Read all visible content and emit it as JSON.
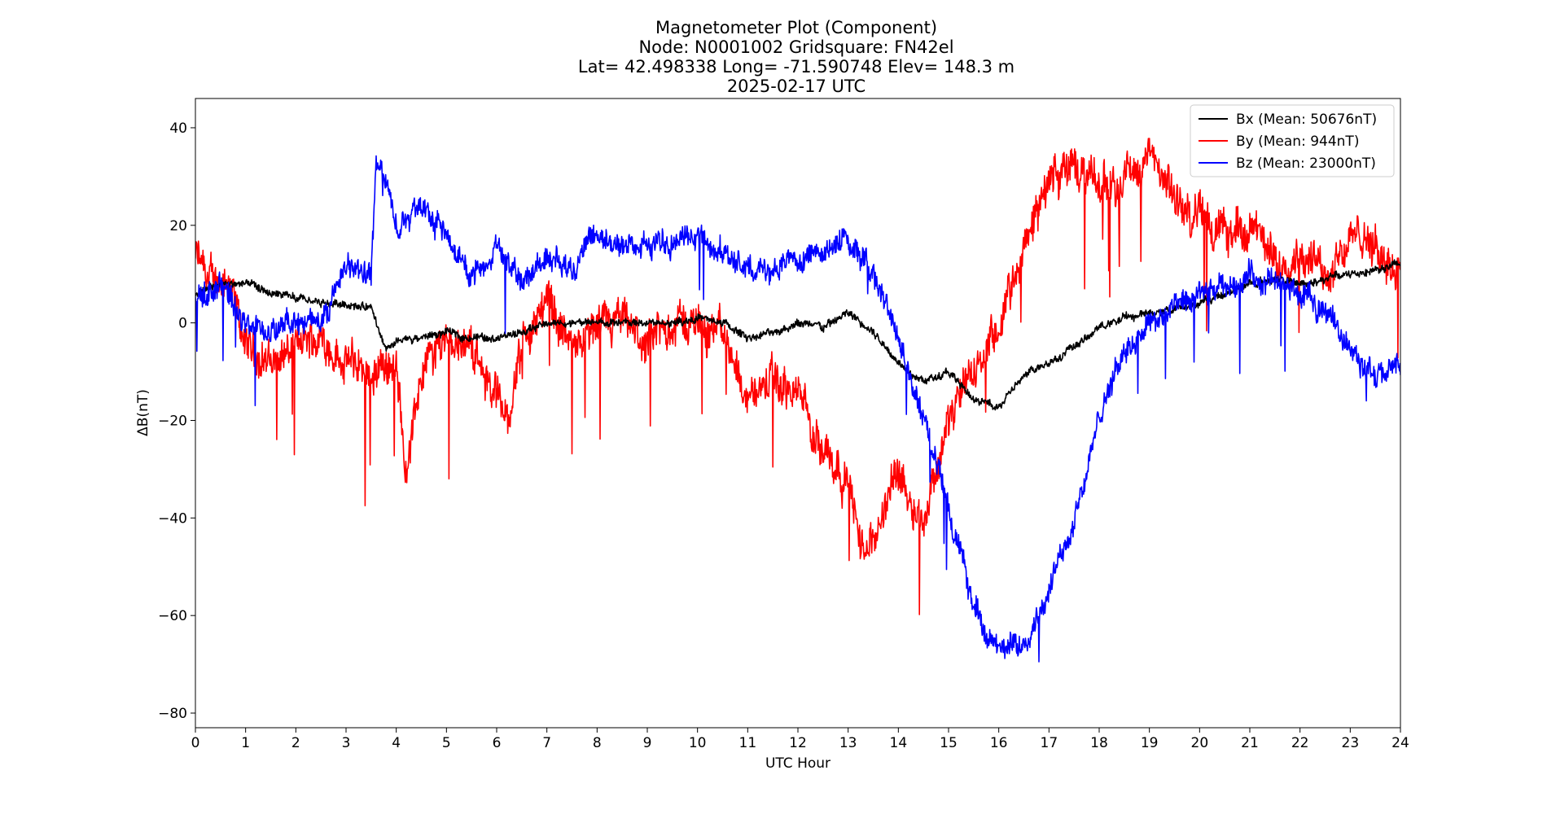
{
  "chart_data": {
    "type": "line",
    "title_lines": [
      "Magnetometer Plot (Component)",
      "Node:  N0001002     Gridsquare:  FN42el",
      "Lat= 42.498338    Long= -71.590748    Elev= 148.3 m",
      "2025-02-17  UTC"
    ],
    "xlabel": "UTC Hour",
    "ylabel": "ΔB(nT)",
    "xlim": [
      0,
      24
    ],
    "ylim": [
      -83,
      46
    ],
    "x_ticks": [
      0,
      1,
      2,
      3,
      4,
      5,
      6,
      7,
      8,
      9,
      10,
      11,
      12,
      13,
      14,
      15,
      16,
      17,
      18,
      19,
      20,
      21,
      22,
      23,
      24
    ],
    "y_ticks": [
      -80,
      -60,
      -40,
      -20,
      0,
      20,
      40
    ],
    "y_tick_labels": [
      "−80",
      "−60",
      "−40",
      "−20",
      "0",
      "20",
      "40"
    ],
    "grid": false,
    "legend_position": "top-right",
    "series": [
      {
        "name": "Bx (Mean: 50676nT)",
        "color": "#000000",
        "noise": 0.9,
        "x": [
          0,
          0.5,
          1,
          1.5,
          2,
          2.5,
          3,
          3.5,
          3.8,
          4,
          4.5,
          5,
          5.5,
          6,
          6.5,
          7,
          7.5,
          8,
          8.5,
          9,
          9.5,
          10,
          10.5,
          11,
          11.5,
          12,
          12.5,
          13,
          13.5,
          14,
          14.5,
          15,
          15.5,
          16,
          16.5,
          17,
          17.5,
          18,
          18.5,
          19,
          19.5,
          20,
          20.5,
          21,
          21.5,
          22,
          22.5,
          23,
          23.5,
          24
        ],
        "y": [
          6,
          8,
          8,
          6,
          5,
          4,
          4,
          3,
          -6,
          -4,
          -3,
          -2,
          -3,
          -3,
          -2,
          0,
          0,
          0,
          0,
          0,
          0,
          1,
          0,
          -3,
          -2,
          0,
          -1,
          2,
          -2,
          -8,
          -12,
          -10,
          -16,
          -17,
          -11,
          -8,
          -5,
          -1,
          1,
          2,
          3,
          4,
          6,
          8,
          9,
          8,
          9,
          10,
          11,
          12
        ]
      },
      {
        "name": "By (Mean: 944nT)",
        "color": "#ff0000",
        "noise": 4.5,
        "x": [
          0,
          0.3,
          0.6,
          1,
          1.5,
          2,
          2.5,
          3,
          3.5,
          3.8,
          4,
          4.2,
          4.5,
          5,
          5.5,
          6,
          6.2,
          6.5,
          7,
          7.5,
          8,
          8.5,
          9,
          9.5,
          10,
          10.5,
          11,
          11.5,
          12,
          12.5,
          13,
          13.3,
          13.5,
          14,
          14.5,
          15,
          15.5,
          16,
          16.5,
          17,
          17.5,
          18,
          18.5,
          19,
          19.5,
          20,
          20.5,
          21,
          21.5,
          22,
          22.5,
          23,
          23.5,
          24
        ],
        "y": [
          14,
          8,
          10,
          -5,
          -8,
          -5,
          -3,
          -8,
          -10,
          -8,
          -10,
          -30,
          -10,
          -2,
          -5,
          -15,
          -20,
          -5,
          5,
          -5,
          -2,
          0,
          -5,
          0,
          0,
          -2,
          -15,
          -12,
          -15,
          -25,
          -32,
          -48,
          -45,
          -30,
          -40,
          -20,
          -10,
          -2,
          15,
          30,
          32,
          28,
          30,
          34,
          25,
          22,
          18,
          20,
          12,
          15,
          10,
          18,
          15,
          12
        ]
      },
      {
        "name": "Bz (Mean: 23000nT)",
        "color": "#0000ff",
        "noise": 2.8,
        "x": [
          0,
          0.5,
          1,
          1.5,
          2,
          2.5,
          3,
          3.5,
          3.6,
          3.7,
          4,
          4.5,
          5,
          5.5,
          6,
          6.5,
          7,
          7.5,
          8,
          8.5,
          9,
          9.5,
          10,
          10.5,
          11,
          11.5,
          12,
          12.5,
          13,
          13.5,
          14,
          14.5,
          15,
          15.5,
          16,
          16.5,
          17,
          17.5,
          18,
          18.5,
          19,
          19.5,
          20,
          20.5,
          21,
          21.5,
          22,
          22.5,
          23,
          23.5,
          24
        ],
        "y": [
          5,
          8,
          0,
          -2,
          0,
          0,
          12,
          10,
          33,
          32,
          20,
          25,
          18,
          10,
          16,
          8,
          14,
          12,
          17,
          16,
          16,
          17,
          18,
          14,
          12,
          10,
          14,
          14,
          18,
          10,
          -3,
          -20,
          -38,
          -58,
          -68,
          -65,
          -55,
          -40,
          -20,
          -5,
          0,
          3,
          5,
          7,
          10,
          8,
          6,
          3,
          -5,
          -12,
          -8
        ]
      }
    ]
  }
}
